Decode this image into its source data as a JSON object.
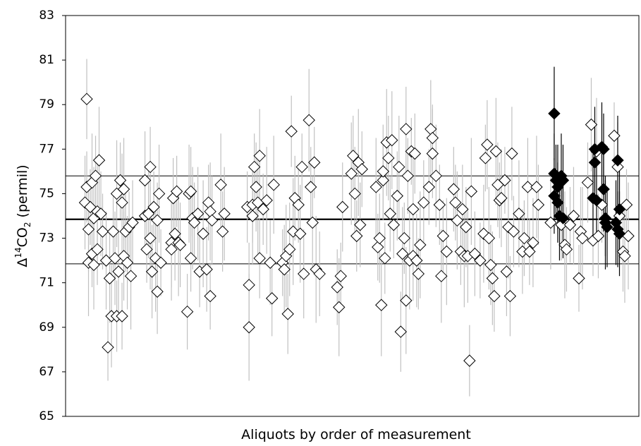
{
  "chart_data": {
    "type": "scatter",
    "y_label": [
      "Δ",
      "14",
      "CO",
      "2",
      " (permil)"
    ],
    "x_label": "Aliquots by order of measurement",
    "xlim": [
      0,
      325
    ],
    "ylim": [
      65,
      83
    ],
    "yticks": [
      65,
      67,
      69,
      71,
      73,
      75,
      77,
      79,
      81,
      83
    ],
    "mean": 73.85,
    "bounds": [
      75.8,
      71.85
    ],
    "series": [
      {
        "color": "#ffffff",
        "edgecolor": "#000000",
        "errorcolor": "#c0c0c0",
        "x": [
          12,
          11,
          12,
          13,
          13,
          14,
          15,
          15,
          16,
          16,
          17,
          18,
          18,
          19,
          20,
          21,
          23,
          24,
          25,
          26,
          27,
          28,
          29,
          29,
          30,
          31,
          32,
          32,
          33,
          33,
          34,
          35,
          36,
          37,
          38,
          45,
          45,
          46,
          47,
          48,
          48,
          49,
          50,
          51,
          52,
          52,
          53,
          54,
          60,
          60,
          61,
          62,
          63,
          64,
          65,
          69,
          70,
          71,
          71,
          72,
          73,
          75,
          76,
          78,
          80,
          81,
          82,
          82,
          83,
          88,
          89,
          90,
          103,
          104,
          104,
          106,
          106,
          107,
          108,
          109,
          110,
          110,
          112,
          114,
          116,
          117,
          118,
          123,
          124,
          125,
          126,
          127,
          128,
          129,
          130,
          132,
          133,
          134,
          135,
          138,
          139,
          140,
          141,
          142,
          144,
          154,
          155,
          156,
          157,
          162,
          163,
          164,
          165,
          166,
          167,
          168,
          176,
          177,
          178,
          179,
          180,
          180,
          181,
          182,
          183,
          184,
          185,
          186,
          188,
          189,
          190,
          191,
          192,
          193,
          193,
          194,
          195,
          196,
          197,
          197,
          198,
          199,
          200,
          201,
          203,
          206,
          207,
          208,
          208,
          210,
          212,
          213,
          214,
          216,
          220,
          221,
          222,
          224,
          225,
          226,
          227,
          228,
          229,
          230,
          232,
          235,
          237,
          238,
          239,
          240,
          241,
          242,
          243,
          244,
          245,
          246,
          247,
          249,
          250,
          251,
          252,
          253,
          254,
          257,
          259,
          260,
          262,
          263,
          265,
          267,
          268,
          275,
          281,
          283,
          284,
          286,
          288,
          291,
          292,
          293,
          296,
          298,
          299,
          301,
          302,
          304,
          305,
          311,
          313,
          314,
          316,
          317,
          318,
          319
        ],
        "values": [
          79.25,
          74.6,
          75.3,
          71.9,
          73.4,
          74.4,
          75.5,
          72.3,
          71.8,
          73.9,
          75.8,
          74.2,
          72.5,
          76.5,
          74.1,
          73.3,
          72.0,
          68.1,
          71.2,
          69.5,
          73.3,
          72.1,
          69.5,
          75.0,
          71.5,
          75.6,
          74.6,
          69.5,
          72.2,
          75.2,
          73.3,
          71.9,
          73.5,
          71.3,
          73.7,
          74.0,
          75.6,
          72.5,
          74.1,
          73.0,
          76.2,
          71.5,
          74.4,
          72.1,
          70.6,
          73.8,
          75.0,
          71.9,
          72.8,
          72.5,
          74.8,
          73.2,
          75.1,
          72.8,
          72.7,
          69.7,
          75.0,
          72.1,
          75.1,
          73.9,
          73.7,
          74.1,
          71.5,
          73.2,
          71.6,
          74.6,
          74.2,
          70.4,
          73.8,
          75.4,
          73.3,
          74.1,
          74.4,
          69.0,
          70.9,
          74.5,
          74.0,
          76.2,
          75.3,
          74.6,
          72.1,
          76.7,
          74.3,
          74.7,
          71.9,
          70.3,
          75.4,
          71.9,
          71.6,
          72.2,
          69.6,
          72.5,
          77.8,
          73.3,
          74.8,
          74.5,
          73.2,
          76.2,
          71.4,
          78.3,
          75.3,
          73.7,
          76.4,
          71.6,
          71.4,
          70.8,
          69.9,
          71.3,
          74.4,
          75.9,
          76.7,
          75.0,
          73.1,
          76.4,
          73.6,
          76.1,
          75.3,
          72.6,
          73.0,
          70.0,
          75.6,
          76.0,
          72.1,
          77.3,
          76.6,
          74.1,
          77.4,
          73.6,
          74.9,
          76.2,
          68.8,
          72.3,
          73.0,
          70.2,
          77.9,
          75.8,
          72.0,
          76.9,
          72.2,
          74.3,
          76.8,
          72.0,
          71.4,
          72.7,
          74.6,
          75.3,
          77.9,
          77.5,
          76.8,
          75.8,
          74.5,
          71.3,
          73.1,
          72.4,
          75.2,
          74.6,
          73.8,
          72.4,
          74.3,
          72.2,
          73.5,
          72.2,
          67.5,
          75.1,
          72.3,
          72.0,
          73.2,
          76.6,
          77.2,
          73.0,
          71.8,
          71.2,
          70.4,
          76.9,
          75.4,
          74.7,
          74.8,
          75.6,
          71.5,
          73.5,
          70.4,
          76.8,
          73.3,
          74.1,
          72.4,
          73.0,
          75.3,
          72.4,
          72.8,
          75.3,
          74.5,
          73.7,
          73.6,
          72.7,
          72.5,
          73.6,
          74.0,
          71.2,
          73.3,
          73.0,
          75.5,
          78.1,
          72.9,
          76.9,
          73.1,
          74.5,
          75.2,
          77.6,
          76.2,
          74.0,
          72.4,
          72.2,
          74.5,
          73.1
        ],
        "errors": [
          1.8,
          2.1,
          1.6,
          2.4,
          1.9,
          1.7,
          2.2,
          1.5,
          2.0,
          2.3,
          1.8,
          2.1,
          1.6,
          2.4,
          1.9,
          1.7,
          2.2,
          1.5,
          2.0,
          2.3,
          1.8,
          2.1,
          1.6,
          2.4,
          1.9,
          1.7,
          2.2,
          1.5,
          2.0,
          2.3,
          1.8,
          2.1,
          1.6,
          2.4,
          1.9,
          1.7,
          2.2,
          1.5,
          2.0,
          2.3,
          1.8,
          2.1,
          1.6,
          2.4,
          1.9,
          1.7,
          2.2,
          1.5,
          2.0,
          2.3,
          1.8,
          2.1,
          1.6,
          2.4,
          1.9,
          1.7,
          2.2,
          1.5,
          2.0,
          2.3,
          1.8,
          2.1,
          1.6,
          2.4,
          1.9,
          1.7,
          2.2,
          1.5,
          2.0,
          2.3,
          1.8,
          2.1,
          1.6,
          2.4,
          1.9,
          1.7,
          2.2,
          1.5,
          2.0,
          2.3,
          1.8,
          2.1,
          1.6,
          2.4,
          1.9,
          1.7,
          2.2,
          1.5,
          2.0,
          2.3,
          1.8,
          2.1,
          1.6,
          2.4,
          1.9,
          1.7,
          2.2,
          1.5,
          2.0,
          2.3,
          1.8,
          2.1,
          1.6,
          2.4,
          1.9,
          1.7,
          2.2,
          1.5,
          2.0,
          2.3,
          1.8,
          2.1,
          1.6,
          2.4,
          1.9,
          1.7,
          2.2,
          1.5,
          2.0,
          2.3,
          1.8,
          2.1,
          1.6,
          2.4,
          1.9,
          1.7,
          2.2,
          1.5,
          2.0,
          2.3,
          1.8,
          2.1,
          1.6,
          2.4,
          1.9,
          1.7,
          2.2,
          1.5,
          2.0,
          2.3,
          1.8,
          2.1,
          1.6,
          2.4,
          1.9,
          1.7,
          2.2,
          1.5,
          2.0,
          2.3,
          1.8,
          2.1,
          1.6,
          2.4,
          1.9,
          1.7,
          2.2,
          1.5,
          2.0,
          2.3,
          1.8,
          2.1,
          1.6,
          2.4,
          1.9,
          1.7,
          2.2,
          1.5,
          2.0,
          2.3,
          1.8,
          2.1,
          1.6,
          2.4,
          1.9,
          1.7,
          2.2,
          1.5,
          2.0,
          2.3,
          1.8,
          2.1,
          1.6,
          2.4,
          1.9,
          1.7,
          2.2,
          1.5,
          2.0,
          2.3,
          1.8,
          2.1,
          1.6,
          2.4,
          1.9,
          1.7,
          2.2,
          1.5,
          2.0,
          2.3,
          1.8,
          2.1,
          1.6,
          2.4,
          1.9,
          1.7,
          2.2,
          1.5,
          2.0,
          2.3,
          1.8,
          2.1,
          1.6,
          2.4
        ]
      },
      {
        "color": "#000000",
        "edgecolor": "#000000",
        "errorcolor": "#000000",
        "x": [
          277,
          277,
          278,
          279,
          277,
          280,
          279,
          281,
          282,
          282,
          299,
          300,
          300,
          301,
          304,
          305,
          305,
          306,
          307,
          306,
          312,
          313,
          314,
          313,
          314
        ],
        "values": [
          78.6,
          75.9,
          75.6,
          75.3,
          74.9,
          74.0,
          74.6,
          75.8,
          75.6,
          73.9,
          74.8,
          76.4,
          77.0,
          74.7,
          77.1,
          77.0,
          75.2,
          73.7,
          73.5,
          73.9,
          73.7,
          76.5,
          74.3,
          73.4,
          73.2
        ],
        "errors": [
          2.1,
          1.8,
          1.6,
          1.9,
          1.7,
          2.0,
          1.8,
          1.9,
          1.6,
          1.8,
          2.0,
          1.7,
          1.9,
          1.8,
          2.0,
          1.6,
          1.9,
          2.1,
          1.8,
          1.7,
          1.9,
          2.0,
          1.8,
          1.7,
          1.9
        ]
      }
    ]
  }
}
